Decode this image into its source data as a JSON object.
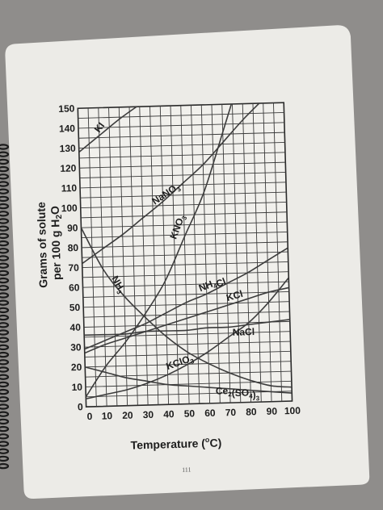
{
  "page": {
    "page_number": "111",
    "ylabel_line1": "Grams of solute",
    "ylabel_line2_prefix": "per 100 g H",
    "ylabel_line2_sub": "2",
    "ylabel_line2_suffix": "O",
    "xlabel_prefix": "Temperature (",
    "xlabel_deg": "o",
    "xlabel_suffix": "C)"
  },
  "chart_data": {
    "type": "line",
    "title": "",
    "xlabel": "Temperature (°C)",
    "ylabel": "Grams of solute per 100 g H2O",
    "xlim": [
      0,
      100
    ],
    "ylim": [
      0,
      150
    ],
    "x_ticks": [
      0,
      10,
      20,
      30,
      40,
      50,
      60,
      70,
      80,
      90,
      100
    ],
    "y_ticks": [
      0,
      10,
      20,
      30,
      40,
      50,
      60,
      70,
      80,
      90,
      100,
      110,
      120,
      130,
      140,
      150
    ],
    "grid": true,
    "legend": "none (curves labeled directly)",
    "line_color": "#3c3c3c",
    "series": [
      {
        "name": "KI",
        "label_base": "KI",
        "label_sub": "",
        "label_after": "",
        "x": [
          0,
          10,
          20,
          30
        ],
        "y": [
          128,
          136,
          144,
          151
        ]
      },
      {
        "name": "NaNO3",
        "label_base": "NaNO",
        "label_sub": "3",
        "label_after": "",
        "x": [
          0,
          10,
          20,
          30,
          40,
          50,
          60,
          70,
          80,
          90,
          100
        ],
        "y": [
          72,
          79,
          86,
          94,
          102,
          111,
          120,
          131,
          142,
          152,
          163
        ]
      },
      {
        "name": "KNO3",
        "label_base": "KNO",
        "label_sub": "3",
        "label_after": "",
        "x": [
          0,
          10,
          20,
          30,
          40,
          50,
          60,
          70,
          80
        ],
        "y": [
          5,
          20,
          32,
          46,
          62,
          84,
          106,
          136,
          167
        ]
      },
      {
        "name": "NH3",
        "label_base": "NH",
        "label_sub": "3",
        "label_after": "",
        "x": [
          0,
          10,
          20,
          30,
          40,
          50,
          60,
          70,
          80,
          90,
          100
        ],
        "y": [
          90,
          69,
          55,
          44,
          34,
          26,
          20,
          15,
          11,
          8,
          7
        ]
      },
      {
        "name": "NH4Cl",
        "label_base": "NH",
        "label_sub": "4",
        "label_after": "Cl",
        "x": [
          0,
          10,
          20,
          30,
          40,
          50,
          60,
          70,
          80,
          90,
          100
        ],
        "y": [
          29,
          33,
          37,
          41,
          46,
          51,
          55,
          60,
          65,
          71,
          77
        ]
      },
      {
        "name": "KCl",
        "label_base": "KCl",
        "label_sub": "",
        "label_after": "",
        "x": [
          0,
          10,
          20,
          30,
          40,
          50,
          60,
          70,
          80,
          90,
          100
        ],
        "y": [
          27,
          31,
          34,
          37,
          40,
          43,
          46,
          49,
          52,
          55,
          57
        ]
      },
      {
        "name": "NaCl",
        "label_base": "NaCl",
        "label_sub": "",
        "label_after": "",
        "x": [
          0,
          10,
          20,
          30,
          40,
          50,
          60,
          70,
          80,
          90,
          100
        ],
        "y": [
          36,
          36,
          36,
          37,
          37,
          37,
          38,
          38,
          39,
          40,
          41
        ]
      },
      {
        "name": "KClO3",
        "label_base": "KClO",
        "label_sub": "3",
        "label_after": "",
        "x": [
          0,
          10,
          20,
          30,
          40,
          50,
          60,
          70,
          80,
          90,
          100
        ],
        "y": [
          4,
          6,
          8,
          11,
          15,
          20,
          26,
          33,
          40,
          50,
          62
        ]
      },
      {
        "name": "Ce2(SO4)3",
        "label_base": "Ce",
        "label_sub": "2",
        "label_after": "(SO",
        "label_sub2": "4",
        "label_after2": ")",
        "label_sub3": "3",
        "x": [
          0,
          10,
          20,
          30,
          40,
          50,
          60,
          70,
          80,
          90,
          100
        ],
        "y": [
          20,
          17,
          14,
          12,
          10,
          9,
          8,
          7,
          6,
          5,
          4
        ]
      }
    ]
  }
}
